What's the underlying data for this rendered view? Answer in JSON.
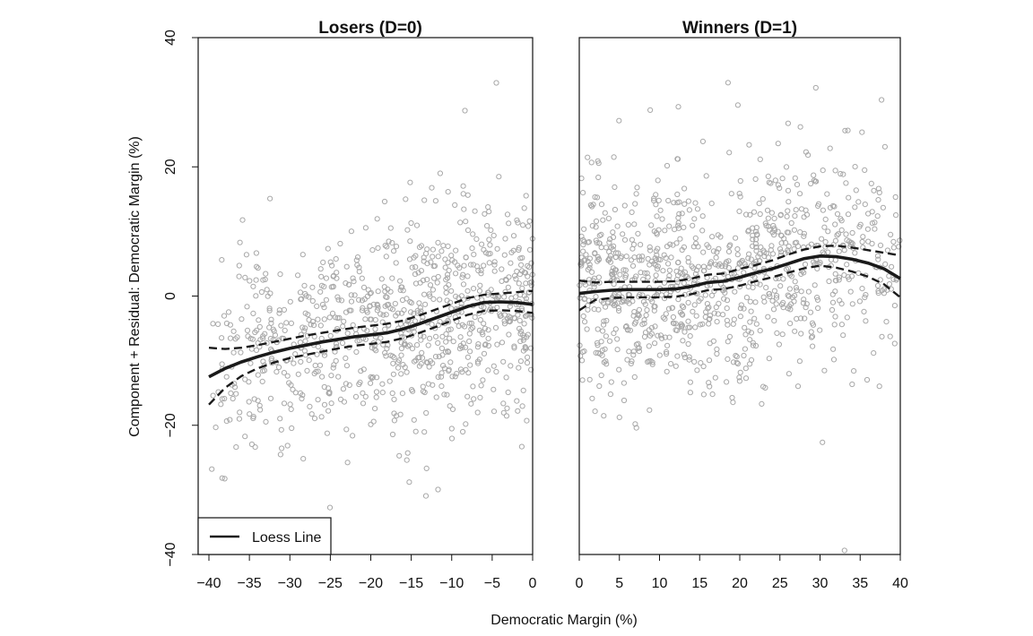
{
  "chart_data": {
    "type": "scatter",
    "xlabel": "Democratic Margin (%)",
    "ylabel": "Component + Residual: Democratic Margin (%)",
    "legend": {
      "placement": "bottom-left of left panel",
      "entries": [
        {
          "label": "Loess Line",
          "style": "solid black line"
        }
      ]
    },
    "colors": {
      "points": "#a8a8a8",
      "loess": "#1a1a1a",
      "band": "#1a1a1a",
      "axis": "#111111"
    },
    "panels": [
      {
        "title": "Losers (D=0)",
        "xlim": [
          -40,
          0
        ],
        "ylim": [
          -40,
          40
        ],
        "xticks": [
          -40,
          -35,
          -30,
          -25,
          -20,
          -15,
          -10,
          -5,
          0
        ],
        "yticks": [
          -40,
          -20,
          0,
          20,
          40
        ],
        "show_y_axis": true,
        "scatter": {
          "n_points": 900,
          "note": "dense cloud of open grey circles"
        },
        "loess": {
          "x": [
            -40,
            -38,
            -36,
            -34,
            -32,
            -30,
            -28,
            -26,
            -24,
            -22,
            -20,
            -18,
            -16,
            -14,
            -12,
            -10,
            -8,
            -6,
            -4,
            -2,
            0
          ],
          "y": [
            -12.5,
            -11.2,
            -10.2,
            -9.4,
            -8.7,
            -8.1,
            -7.6,
            -7.1,
            -6.7,
            -6.3,
            -6.0,
            -5.7,
            -5.1,
            -4.3,
            -3.4,
            -2.5,
            -1.6,
            -1.0,
            -0.9,
            -1.0,
            -1.3
          ]
        },
        "band_upper": {
          "x": [
            -40,
            -38,
            -36,
            -34,
            -32,
            -30,
            -28,
            -26,
            -24,
            -22,
            -20,
            -18,
            -16,
            -14,
            -12,
            -10,
            -8,
            -6,
            -4,
            -2,
            0
          ],
          "y": [
            -8.0,
            -8.2,
            -8.0,
            -7.6,
            -7.1,
            -6.6,
            -6.1,
            -5.7,
            -5.3,
            -4.9,
            -4.6,
            -4.3,
            -3.8,
            -3.0,
            -2.1,
            -1.2,
            -0.3,
            0.2,
            0.4,
            0.6,
            0.8
          ]
        },
        "band_lower": {
          "x": [
            -40,
            -38,
            -36,
            -34,
            -32,
            -30,
            -28,
            -26,
            -24,
            -22,
            -20,
            -18,
            -16,
            -14,
            -12,
            -10,
            -8,
            -6,
            -4,
            -2,
            0
          ],
          "y": [
            -16.8,
            -14.2,
            -12.4,
            -11.2,
            -10.3,
            -9.6,
            -9.1,
            -8.6,
            -8.1,
            -7.7,
            -7.4,
            -7.1,
            -6.5,
            -5.7,
            -4.8,
            -3.8,
            -2.9,
            -2.3,
            -2.2,
            -2.3,
            -2.6
          ]
        }
      },
      {
        "title": "Winners (D=1)",
        "xlim": [
          0,
          40
        ],
        "ylim": [
          -40,
          40
        ],
        "xticks": [
          0,
          5,
          10,
          15,
          20,
          25,
          30,
          35,
          40
        ],
        "yticks": [],
        "show_y_axis": false,
        "scatter": {
          "n_points": 1000,
          "note": "dense cloud of open grey circles"
        },
        "loess": {
          "x": [
            0,
            2,
            4,
            6,
            8,
            10,
            12,
            14,
            16,
            18,
            20,
            22,
            24,
            26,
            28,
            30,
            32,
            34,
            36,
            38,
            40
          ],
          "y": [
            0.4,
            0.7,
            0.9,
            1.0,
            1.0,
            1.0,
            1.1,
            1.5,
            2.1,
            2.3,
            2.9,
            3.6,
            4.2,
            5.0,
            5.8,
            6.2,
            6.1,
            5.7,
            5.1,
            4.2,
            2.7
          ]
        },
        "band_upper": {
          "x": [
            0,
            2,
            4,
            6,
            8,
            10,
            12,
            14,
            16,
            18,
            20,
            22,
            24,
            26,
            28,
            30,
            32,
            34,
            36,
            38,
            40
          ],
          "y": [
            2.4,
            2.1,
            2.2,
            2.2,
            2.2,
            2.2,
            2.3,
            2.7,
            3.3,
            3.5,
            4.2,
            4.8,
            5.5,
            6.4,
            7.2,
            7.7,
            7.8,
            7.5,
            7.1,
            6.7,
            6.3
          ]
        },
        "band_lower": {
          "x": [
            0,
            2,
            4,
            6,
            8,
            10,
            12,
            14,
            16,
            18,
            20,
            22,
            24,
            26,
            28,
            30,
            32,
            34,
            36,
            38,
            40
          ],
          "y": [
            -2.2,
            -0.6,
            -0.3,
            -0.2,
            -0.2,
            -0.2,
            -0.1,
            0.3,
            0.9,
            1.1,
            1.6,
            2.3,
            2.9,
            3.6,
            4.3,
            4.7,
            4.4,
            3.8,
            3.0,
            1.8,
            -0.2
          ]
        }
      }
    ]
  }
}
